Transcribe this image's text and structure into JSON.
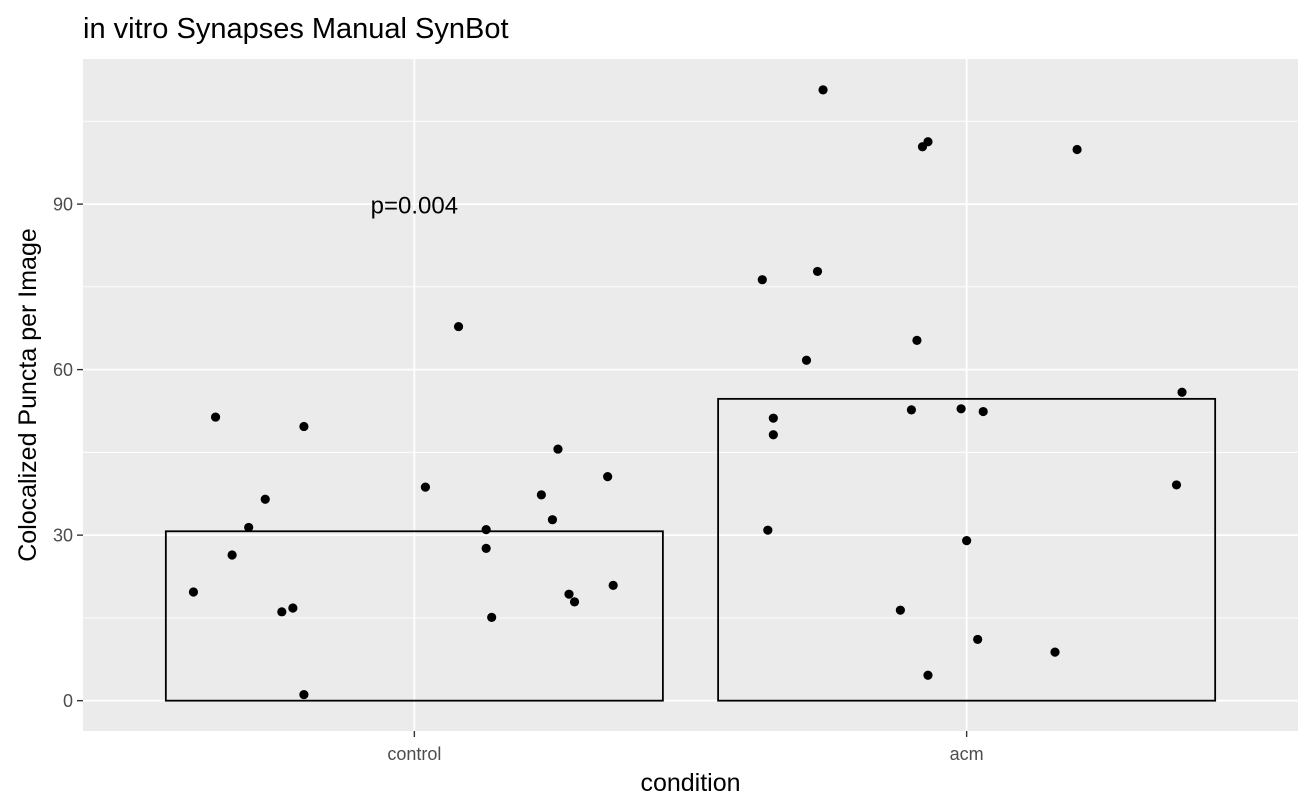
{
  "chart_data": {
    "type": "bar",
    "title": "in vitro Synapses Manual SynBot",
    "xlabel": "condition",
    "ylabel": "Colocalized Puncta per Image",
    "categories": [
      "control",
      "acm"
    ],
    "values": [
      30.7,
      54.7
    ],
    "ylim": [
      -5.5,
      116.3
    ],
    "yticks": [
      "0",
      "30",
      "60",
      "90"
    ],
    "grid": true,
    "legend": "none",
    "annotation": "p=0.004",
    "colors": {
      "panel": "#ebebeb",
      "grid": "#ffffff",
      "bar_fill": "none",
      "bar_stroke": "#000000",
      "point": "#000000"
    },
    "points": [
      {
        "category": "control",
        "jitter": -0.4,
        "y": 19.7
      },
      {
        "category": "control",
        "jitter": -0.36,
        "y": 51.4
      },
      {
        "category": "control",
        "jitter": -0.33,
        "y": 26.4
      },
      {
        "category": "control",
        "jitter": -0.3,
        "y": 31.4
      },
      {
        "category": "control",
        "jitter": -0.27,
        "y": 36.5
      },
      {
        "category": "control",
        "jitter": -0.24,
        "y": 16.1
      },
      {
        "category": "control",
        "jitter": -0.22,
        "y": 16.8
      },
      {
        "category": "control",
        "jitter": -0.2,
        "y": 49.7
      },
      {
        "category": "control",
        "jitter": -0.2,
        "y": 1.1
      },
      {
        "category": "control",
        "jitter": 0.02,
        "y": 38.7
      },
      {
        "category": "control",
        "jitter": 0.08,
        "y": 67.8
      },
      {
        "category": "control",
        "jitter": 0.13,
        "y": 31.0
      },
      {
        "category": "control",
        "jitter": 0.13,
        "y": 27.6
      },
      {
        "category": "control",
        "jitter": 0.14,
        "y": 15.1
      },
      {
        "category": "control",
        "jitter": 0.23,
        "y": 37.3
      },
      {
        "category": "control",
        "jitter": 0.25,
        "y": 32.8
      },
      {
        "category": "control",
        "jitter": 0.26,
        "y": 45.6
      },
      {
        "category": "control",
        "jitter": 0.28,
        "y": 19.3
      },
      {
        "category": "control",
        "jitter": 0.29,
        "y": 17.9
      },
      {
        "category": "control",
        "jitter": 0.35,
        "y": 40.6
      },
      {
        "category": "control",
        "jitter": 0.36,
        "y": 20.9
      },
      {
        "category": "acm",
        "jitter": -0.37,
        "y": 76.3
      },
      {
        "category": "acm",
        "jitter": -0.36,
        "y": 30.9
      },
      {
        "category": "acm",
        "jitter": -0.35,
        "y": 48.2
      },
      {
        "category": "acm",
        "jitter": -0.35,
        "y": 51.2
      },
      {
        "category": "acm",
        "jitter": -0.29,
        "y": 61.7
      },
      {
        "category": "acm",
        "jitter": -0.27,
        "y": 77.8
      },
      {
        "category": "acm",
        "jitter": -0.26,
        "y": 110.7
      },
      {
        "category": "acm",
        "jitter": -0.12,
        "y": 16.4
      },
      {
        "category": "acm",
        "jitter": -0.1,
        "y": 52.7
      },
      {
        "category": "acm",
        "jitter": -0.09,
        "y": 65.3
      },
      {
        "category": "acm",
        "jitter": -0.08,
        "y": 100.4
      },
      {
        "category": "acm",
        "jitter": -0.07,
        "y": 101.3
      },
      {
        "category": "acm",
        "jitter": -0.07,
        "y": 4.6
      },
      {
        "category": "acm",
        "jitter": -0.01,
        "y": 52.9
      },
      {
        "category": "acm",
        "jitter": 0.0,
        "y": 29.0
      },
      {
        "category": "acm",
        "jitter": 0.02,
        "y": 11.1
      },
      {
        "category": "acm",
        "jitter": 0.03,
        "y": 52.4
      },
      {
        "category": "acm",
        "jitter": 0.16,
        "y": 8.8
      },
      {
        "category": "acm",
        "jitter": 0.2,
        "y": 99.9
      },
      {
        "category": "acm",
        "jitter": 0.38,
        "y": 39.1
      },
      {
        "category": "acm",
        "jitter": 0.39,
        "y": 55.9
      }
    ]
  }
}
